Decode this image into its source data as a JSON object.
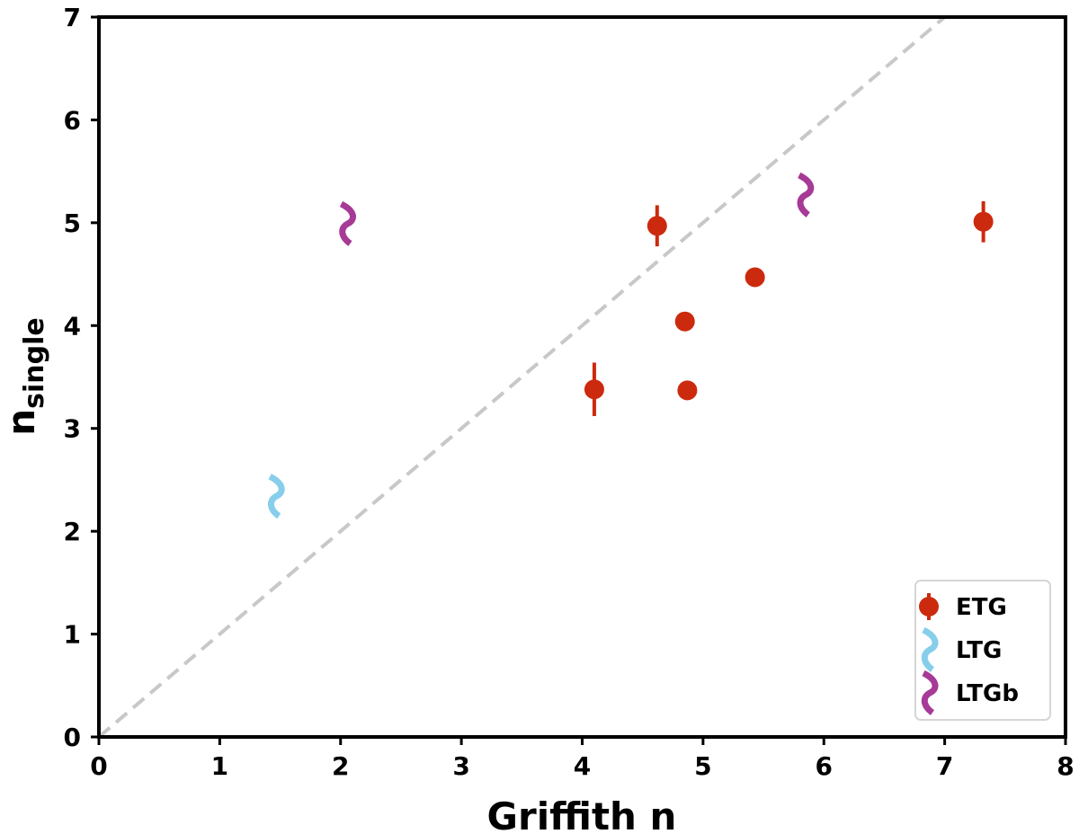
{
  "chart_data": {
    "type": "scatter",
    "title": "",
    "xlabel": "Griffith n",
    "ylabel_main": "n",
    "ylabel_sub": "single",
    "xlim": [
      0,
      8
    ],
    "ylim": [
      0,
      7
    ],
    "xticks": [
      "0",
      "1",
      "2",
      "3",
      "4",
      "5",
      "6",
      "7",
      "8"
    ],
    "yticks": [
      "0",
      "1",
      "2",
      "3",
      "4",
      "5",
      "6",
      "7"
    ],
    "reference_line": {
      "style": "dashed",
      "slope": 1,
      "color": "#c8c8c8"
    },
    "legend_position": "lower-right",
    "series": [
      {
        "name": "ETG",
        "marker": "circle",
        "color": "#cc2a0e",
        "points": [
          {
            "x": 4.62,
            "y": 4.97,
            "yerr": 0.2
          },
          {
            "x": 7.32,
            "y": 5.01,
            "yerr": 0.2
          },
          {
            "x": 5.43,
            "y": 4.47,
            "yerr": 0.0
          },
          {
            "x": 4.85,
            "y": 4.04,
            "yerr": 0.0
          },
          {
            "x": 4.1,
            "y": 3.38,
            "yerr": 0.26
          },
          {
            "x": 4.87,
            "y": 3.37,
            "yerr": 0.0
          }
        ]
      },
      {
        "name": "LTG",
        "marker": "squiggle",
        "color": "#87ceeb",
        "points": [
          {
            "x": 1.46,
            "y": 2.34
          }
        ]
      },
      {
        "name": "LTGb",
        "marker": "squiggle",
        "color": "#a63a96",
        "points": [
          {
            "x": 2.05,
            "y": 4.99
          },
          {
            "x": 5.84,
            "y": 5.27
          }
        ]
      }
    ]
  }
}
